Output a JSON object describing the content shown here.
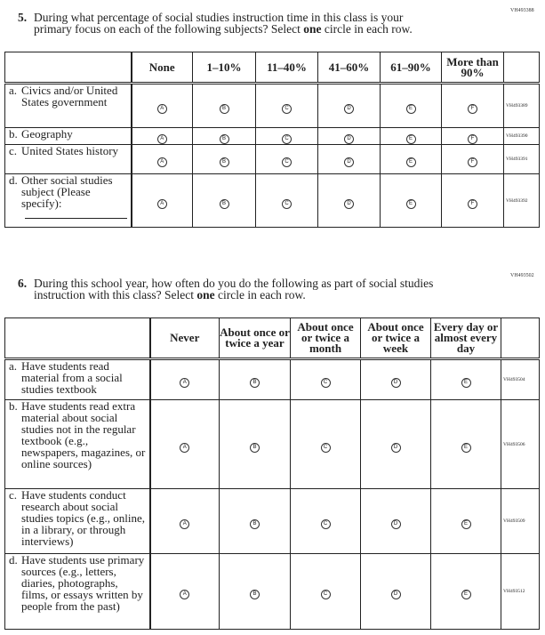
{
  "q5": {
    "code": "VH493388",
    "number": "5.",
    "line1": "During what percentage of social studies instruction time in this class is your",
    "line2a": "primary focus on each of the following subjects? Select ",
    "line2b": "one",
    "line2c": " circle in each row.",
    "columns": [
      "None",
      "1–10%",
      "11–40%",
      "41–60%",
      "61–90%",
      "More than 90%"
    ],
    "bubbles": [
      "A",
      "B",
      "C",
      "D",
      "E",
      "F"
    ],
    "rows": [
      {
        "letter": "a.",
        "text": "Civics and/or United States government",
        "code": "VH493389"
      },
      {
        "letter": "b.",
        "text": "Geography",
        "code": "VH493390"
      },
      {
        "letter": "c.",
        "text": "United States history",
        "code": "VH493391"
      },
      {
        "letter": "d.",
        "text": "Other social studies subject (Please specify):",
        "code": "VH493392"
      }
    ]
  },
  "q6": {
    "code": "VH493502",
    "number": "6.",
    "line1": "During this school year, how often do you do the following as part of social studies",
    "line2a": "instruction with this class? Select ",
    "line2b": "one",
    "line2c": " circle in each row.",
    "columns": [
      "Never",
      "About once or twice a year",
      "About once or twice a month",
      "About once or twice a week",
      "Every day or almost every day"
    ],
    "bubbles": [
      "A",
      "B",
      "C",
      "D",
      "E"
    ],
    "rows": [
      {
        "letter": "a.",
        "text": "Have students read material from a social studies textbook",
        "code": "VH493504"
      },
      {
        "letter": "b.",
        "text": "Have students read extra material about social studies not in the regular textbook (e.g., newspapers, magazines, or online sources)",
        "code": "VH493506"
      },
      {
        "letter": "c.",
        "text": "Have students conduct research about social studies topics (e.g., online, in a library, or through interviews)",
        "code": "VH493509"
      },
      {
        "letter": "d.",
        "text": "Have students use primary sources (e.g., letters, diaries, photographs, films, or essays written by people from the past)",
        "code": "VH493512"
      }
    ]
  }
}
